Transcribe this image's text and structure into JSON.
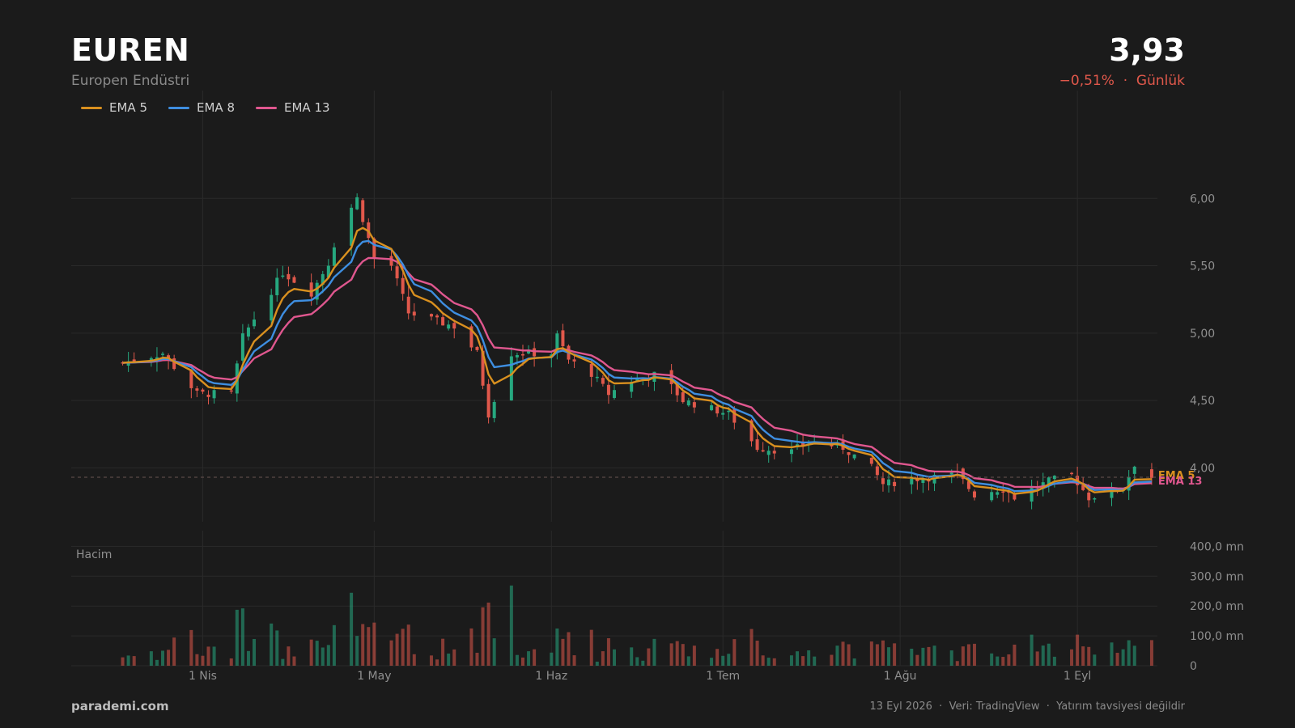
{
  "header": {
    "ticker": "EUREN",
    "company": "Europen Endüstri",
    "price": "3,93",
    "change": "−0,51%  ·  Günlük"
  },
  "footer": {
    "brand": "parademi.com",
    "note": "13 Eyl 2026  ·  Veri: TradingView  ·  Yatırım tavsiyesi değildir"
  },
  "colors": {
    "background": "#1b1b1b",
    "up": "#26a87f",
    "down": "#e0584b",
    "ema5": "#d9901f",
    "ema8": "#3e8ee0",
    "ema13": "#e0578f",
    "grid": "#2a2a2a",
    "axis_text": "#8f8f8f"
  },
  "chart_data": {
    "type": "candlestick",
    "legend": [
      {
        "name": "EMA 5",
        "color": "#d9901f"
      },
      {
        "name": "EMA 8",
        "color": "#3e8ee0"
      },
      {
        "name": "EMA 13",
        "color": "#e0578f"
      }
    ],
    "price_axis": {
      "ticks": [
        4.0,
        4.5,
        5.0,
        5.5,
        6.0
      ],
      "tick_labels": [
        "4,00",
        "4,50",
        "5,00",
        "5,50",
        "6,00"
      ],
      "range": [
        3.6,
        6.8
      ]
    },
    "volume_axis": {
      "label": "Hacim",
      "ticks": [
        0,
        100,
        200,
        300,
        400
      ],
      "tick_labels": [
        "0",
        "100,0 mn",
        "200,0 mn",
        "300,0 mn",
        "400,0 mn"
      ],
      "range": [
        0,
        420
      ]
    },
    "x_axis": {
      "range": [
        "2026-03-09",
        "2026-09-15"
      ],
      "ticks": [
        "2026-04-01",
        "2026-05-01",
        "2026-06-01",
        "2026-07-01",
        "2026-08-01",
        "2026-09-01"
      ],
      "tick_labels": [
        "1 Nis",
        "1 May",
        "1 Haz",
        "1 Tem",
        "1 Ağu",
        "1 Eyl"
      ]
    },
    "last_price": 3.93,
    "last_labels": [
      "EMA 5",
      "EMA 13"
    ],
    "key_closes": [
      [
        "2026-03-18",
        4.78
      ],
      [
        "2026-03-25",
        4.85
      ],
      [
        "2026-03-31",
        4.55
      ],
      [
        "2026-04-06",
        4.55
      ],
      [
        "2026-04-08",
        4.97
      ],
      [
        "2026-04-15",
        5.45
      ],
      [
        "2026-04-20",
        5.3
      ],
      [
        "2026-04-23",
        5.52
      ],
      [
        "2026-04-25",
        5.8
      ],
      [
        "2026-04-28",
        6.0
      ],
      [
        "2026-05-01",
        5.55
      ],
      [
        "2026-05-04",
        5.5
      ],
      [
        "2026-05-07",
        5.15
      ],
      [
        "2026-05-11",
        5.1
      ],
      [
        "2026-05-15",
        5.05
      ],
      [
        "2026-05-19",
        4.85
      ],
      [
        "2026-05-21",
        4.4
      ],
      [
        "2026-05-25",
        4.85
      ],
      [
        "2026-06-01",
        4.85
      ],
      [
        "2026-06-02",
        4.98
      ],
      [
        "2026-06-04",
        4.8
      ],
      [
        "2026-06-08",
        4.7
      ],
      [
        "2026-06-11",
        4.55
      ],
      [
        "2026-06-15",
        4.65
      ],
      [
        "2026-06-20",
        4.7
      ],
      [
        "2026-06-24",
        4.5
      ],
      [
        "2026-07-02",
        4.4
      ],
      [
        "2026-07-07",
        4.15
      ],
      [
        "2026-07-13",
        4.12
      ],
      [
        "2026-07-16",
        4.2
      ],
      [
        "2026-07-22",
        4.15
      ],
      [
        "2026-07-27",
        4.0
      ],
      [
        "2026-07-29",
        3.88
      ],
      [
        "2026-08-04",
        3.92
      ],
      [
        "2026-08-11",
        3.95
      ],
      [
        "2026-08-14",
        3.8
      ],
      [
        "2026-08-19",
        3.85
      ],
      [
        "2026-08-21",
        3.78
      ],
      [
        "2026-08-27",
        3.9
      ],
      [
        "2026-08-31",
        3.95
      ],
      [
        "2026-09-03",
        3.78
      ],
      [
        "2026-09-09",
        3.85
      ],
      [
        "2026-09-11",
        4.03
      ],
      [
        "2026-09-14",
        3.93
      ]
    ]
  }
}
